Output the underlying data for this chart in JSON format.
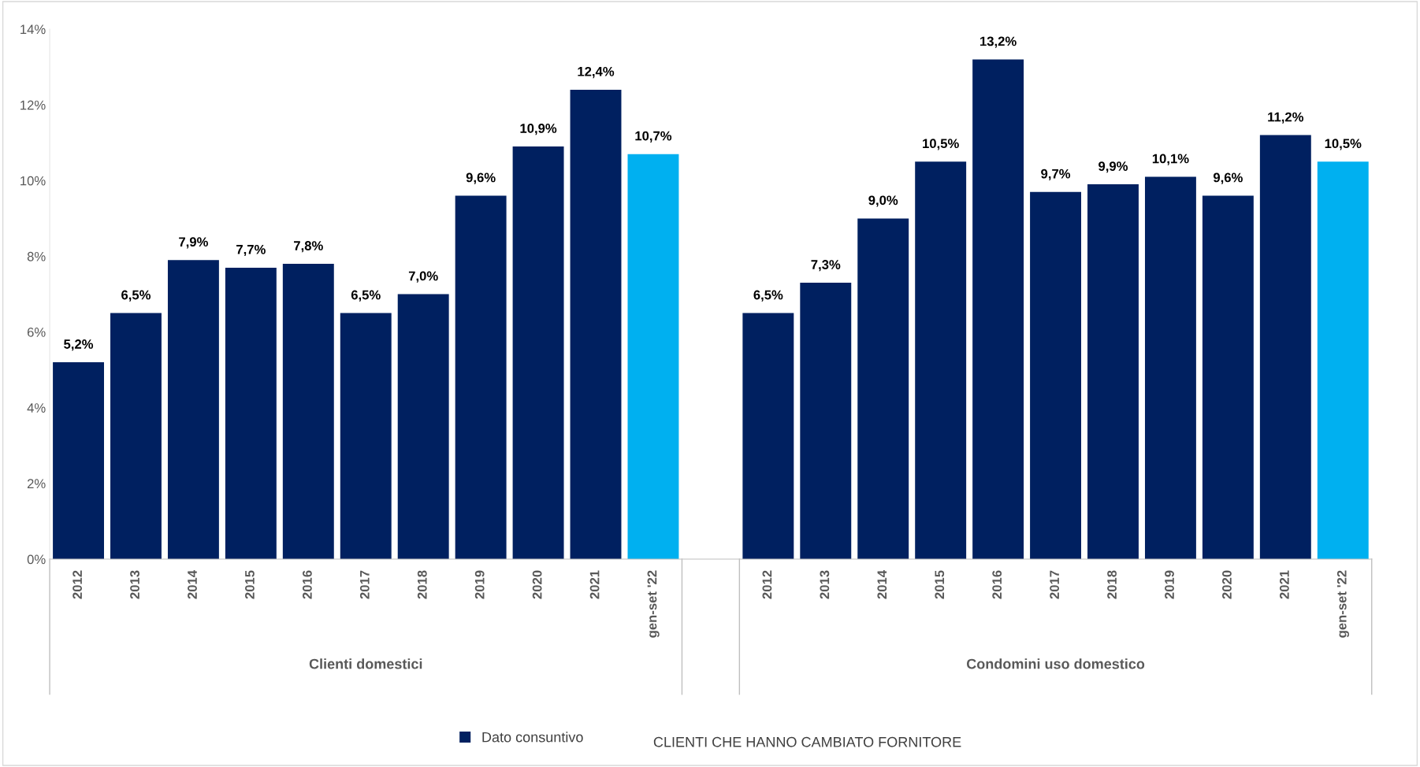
{
  "chart_data": {
    "type": "bar",
    "title": "CLIENTI CHE HANNO CAMBIATO FORNITORE",
    "categories": [
      "2012",
      "2013",
      "2014",
      "2015",
      "2016",
      "2017",
      "2018",
      "2019",
      "2020",
      "2021",
      "gen-set '22",
      null,
      "2012",
      "2013",
      "2014",
      "2015",
      "2016",
      "2017",
      "2018",
      "2019",
      "2020",
      "2021",
      "gen-set '22"
    ],
    "series": [
      {
        "name": "Dato consuntivo",
        "color": "#002060",
        "colors": [
          "#002060",
          "#002060",
          "#002060",
          "#002060",
          "#002060",
          "#002060",
          "#002060",
          "#002060",
          "#002060",
          "#002060",
          "#00b0f0",
          null,
          "#002060",
          "#002060",
          "#002060",
          "#002060",
          "#002060",
          "#002060",
          "#002060",
          "#002060",
          "#002060",
          "#002060",
          "#00b0f0"
        ],
        "values": [
          5.2,
          6.5,
          7.9,
          7.7,
          7.8,
          6.5,
          7.0,
          9.6,
          10.9,
          12.4,
          10.7,
          null,
          6.5,
          7.3,
          9.0,
          10.5,
          13.2,
          9.7,
          9.9,
          10.1,
          9.6,
          11.2,
          10.5
        ],
        "value_labels": [
          "5,2%",
          "6,5%",
          "7,9%",
          "7,7%",
          "7,8%",
          "6,5%",
          "7,0%",
          "9,6%",
          "10,9%",
          "12,4%",
          "10,7%",
          null,
          "6,5%",
          "7,3%",
          "9,0%",
          "10,5%",
          "13,2%",
          "9,7%",
          "9,9%",
          "10,1%",
          "9,6%",
          "11,2%",
          "10,5%"
        ]
      }
    ],
    "annotations": [
      "Clienti domestici",
      "Condomini uso domestico"
    ],
    "ylim": [
      0,
      14
    ],
    "yticks": [
      {
        "value": 0,
        "label": "0%"
      },
      {
        "value": 2,
        "label": "2%"
      },
      {
        "value": 4,
        "label": "4%"
      },
      {
        "value": 6,
        "label": "6%"
      },
      {
        "value": 8,
        "label": "8%"
      },
      {
        "value": 10,
        "label": "10%"
      },
      {
        "value": 12,
        "label": "12%"
      },
      {
        "value": 14,
        "label": "14%"
      }
    ],
    "legend": "bottom"
  }
}
